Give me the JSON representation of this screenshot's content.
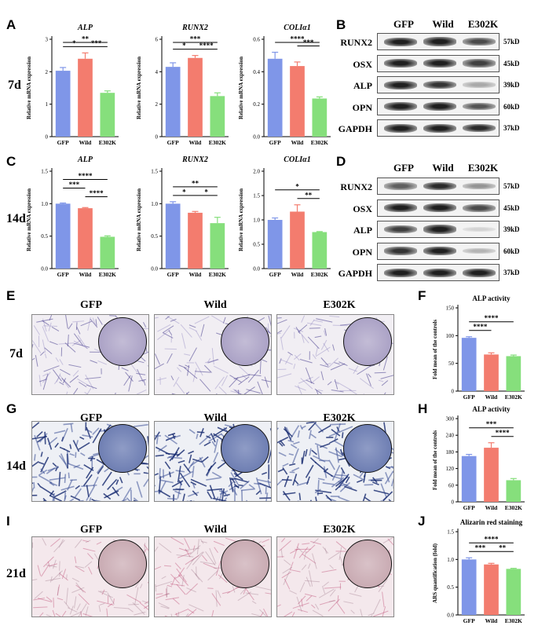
{
  "panel_letters": [
    "A",
    "B",
    "C",
    "D",
    "E",
    "F",
    "G",
    "H",
    "I",
    "J"
  ],
  "row_labels": {
    "r7a": "7d",
    "r14a": "14d",
    "r7e": "7d",
    "r14g": "14d",
    "r21": "21d"
  },
  "groups": [
    "GFP",
    "Wild",
    "E302K"
  ],
  "colors": {
    "gfp": "#7f96e8",
    "wild": "#f37c6e",
    "e302k": "#86df7c"
  },
  "blots": {
    "proteins": [
      "RUNX2",
      "OSX",
      "ALP",
      "OPN",
      "GAPDH"
    ],
    "kd": [
      "57kD",
      "45kD",
      "39kD",
      "60kD",
      "37kD"
    ]
  },
  "images": {
    "alp_7d": {
      "row": "7d"
    },
    "alp_14d": {
      "row": "14d"
    },
    "ars_21d": {
      "row": "21d"
    }
  },
  "chart_data": [
    {
      "id": "A1",
      "type": "bar",
      "title": "ALP",
      "ylabel": "Relative mRNA expression",
      "categories": [
        "GFP",
        "Wild",
        "E302K"
      ],
      "values": [
        2.03,
        2.4,
        1.35
      ],
      "errors": [
        0.1,
        0.18,
        0.06
      ],
      "ylim": [
        0,
        3
      ],
      "yticks": [
        0,
        1,
        2,
        3
      ],
      "sig": [
        {
          "from": 0,
          "to": 2,
          "label": "**",
          "level": 2
        },
        {
          "from": 0,
          "to": 1,
          "label": "*",
          "level": 1
        },
        {
          "from": 1,
          "to": 2,
          "label": "***",
          "level": 1
        }
      ]
    },
    {
      "id": "A2",
      "type": "bar",
      "title": "RUNX2",
      "ylabel": "Relative mRNA expression",
      "categories": [
        "GFP",
        "Wild",
        "E302K"
      ],
      "values": [
        4.3,
        4.85,
        2.5
      ],
      "errors": [
        0.25,
        0.15,
        0.2
      ],
      "ylim": [
        0,
        6
      ],
      "yticks": [
        0,
        2,
        4,
        6
      ],
      "sig": [
        {
          "from": 0,
          "to": 2,
          "label": "***",
          "level": 2
        },
        {
          "from": 0,
          "to": 1,
          "label": "*",
          "level": 1
        },
        {
          "from": 1,
          "to": 2,
          "label": "****",
          "level": 1
        }
      ]
    },
    {
      "id": "A3",
      "type": "bar",
      "title": "COLIα1",
      "ylabel": "Relative mRNA expression",
      "categories": [
        "GFP",
        "Wild",
        "E302K"
      ],
      "values": [
        0.48,
        0.435,
        0.235
      ],
      "errors": [
        0.04,
        0.025,
        0.01
      ],
      "ylim": [
        0,
        0.6
      ],
      "yticks": [
        0,
        0.2,
        0.4,
        0.6
      ],
      "sig": [
        {
          "from": 0,
          "to": 2,
          "label": "****",
          "level": 2
        },
        {
          "from": 1,
          "to": 2,
          "label": "***",
          "level": 1
        }
      ]
    },
    {
      "id": "C1",
      "type": "bar",
      "title": "ALP",
      "ylabel": "Relative mRNA expression",
      "categories": [
        "GFP",
        "Wild",
        "E302K"
      ],
      "values": [
        1.0,
        0.93,
        0.49
      ],
      "errors": [
        0.01,
        0.01,
        0.015
      ],
      "ylim": [
        0,
        1.5
      ],
      "yticks": [
        0,
        0.5,
        1.0,
        1.5
      ],
      "sig": [
        {
          "from": 0,
          "to": 2,
          "label": "****",
          "level": 3
        },
        {
          "from": 0,
          "to": 1,
          "label": "***",
          "level": 2
        },
        {
          "from": 1,
          "to": 2,
          "label": "****",
          "level": 1
        }
      ]
    },
    {
      "id": "C2",
      "type": "bar",
      "title": "RUNX2",
      "ylabel": "Relative mRNA expression",
      "categories": [
        "GFP",
        "Wild",
        "E302K"
      ],
      "values": [
        1.0,
        0.86,
        0.7
      ],
      "errors": [
        0.03,
        0.02,
        0.09
      ],
      "ylim": [
        0,
        1.5
      ],
      "yticks": [
        0,
        0.5,
        1.0,
        1.5
      ],
      "sig": [
        {
          "from": 0,
          "to": 2,
          "label": "**",
          "level": 2
        },
        {
          "from": 0,
          "to": 1,
          "label": "*",
          "level": 1
        },
        {
          "from": 1,
          "to": 2,
          "label": "*",
          "level": 1
        }
      ]
    },
    {
      "id": "C3",
      "type": "bar",
      "title": "COLIα1",
      "ylabel": "Relative mRNA expression",
      "categories": [
        "GFP",
        "Wild",
        "E302K"
      ],
      "values": [
        1.0,
        1.17,
        0.75
      ],
      "errors": [
        0.04,
        0.14,
        0.01
      ],
      "ylim": [
        0,
        2.0
      ],
      "yticks": [
        0,
        0.5,
        1.0,
        1.5,
        2.0
      ],
      "sig": [
        {
          "from": 0,
          "to": 2,
          "label": "*",
          "level": 2
        },
        {
          "from": 1,
          "to": 2,
          "label": "**",
          "level": 1
        }
      ]
    },
    {
      "id": "F",
      "type": "bar",
      "title": "ALP activity",
      "ylabel": "Fold mean of the controls",
      "categories": [
        "GFP",
        "Wild",
        "E302K"
      ],
      "values": [
        96,
        66,
        63
      ],
      "errors": [
        2,
        3,
        2
      ],
      "ylim": [
        0,
        150
      ],
      "yticks": [
        0,
        50,
        100,
        150
      ],
      "sig": [
        {
          "from": 0,
          "to": 2,
          "label": "****",
          "level": 2
        },
        {
          "from": 0,
          "to": 1,
          "label": "****",
          "level": 1
        }
      ]
    },
    {
      "id": "H",
      "type": "bar",
      "title": "ALP activity",
      "ylabel": "Fold mean of the controls",
      "categories": [
        "GFP",
        "Wild",
        "E302K"
      ],
      "values": [
        165,
        195,
        78
      ],
      "errors": [
        6,
        18,
        6
      ],
      "ylim": [
        0,
        300
      ],
      "yticks": [
        0,
        60,
        120,
        180,
        240,
        300
      ],
      "sig": [
        {
          "from": 0,
          "to": 2,
          "label": "***",
          "level": 2
        },
        {
          "from": 1,
          "to": 2,
          "label": "****",
          "level": 1
        }
      ]
    },
    {
      "id": "J",
      "type": "bar",
      "title": "Alizarin red staining",
      "ylabel": "ARS quantification (fold)",
      "categories": [
        "GFP",
        "Wild",
        "E302K"
      ],
      "values": [
        1.0,
        0.91,
        0.83
      ],
      "errors": [
        0.03,
        0.02,
        0.01
      ],
      "ylim": [
        0,
        1.5
      ],
      "yticks": [
        0,
        0.5,
        1.0,
        1.5
      ],
      "sig": [
        {
          "from": 0,
          "to": 2,
          "label": "****",
          "level": 2
        },
        {
          "from": 0,
          "to": 1,
          "label": "***",
          "level": 1
        },
        {
          "from": 1,
          "to": 2,
          "label": "**",
          "level": 1
        }
      ]
    }
  ]
}
